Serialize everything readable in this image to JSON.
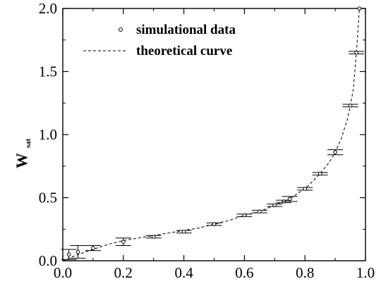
{
  "chart_data": {
    "type": "scatter",
    "ylabel": "W",
    "ylabel_subscript": "sat",
    "xlabel": "",
    "title": "",
    "xlim": [
      0.0,
      1.0
    ],
    "ylim": [
      0.0,
      2.0
    ],
    "xticks": [
      "0.0",
      "0.2",
      "0.4",
      "0.6",
      "0.8",
      "1.0"
    ],
    "yticks": [
      "0.0",
      "0.5",
      "1.0",
      "1.5",
      "2.0"
    ],
    "grid": false,
    "legend_position": "top-left",
    "series": [
      {
        "name": "simulational data",
        "style": "open-circle-markers-with-error-bars",
        "points": [
          {
            "x": 0.02,
            "y": 0.05,
            "yerr": 0.04
          },
          {
            "x": 0.05,
            "y": 0.07,
            "yerr": 0.05
          },
          {
            "x": 0.1,
            "y": 0.1,
            "yerr": 0.02
          },
          {
            "x": 0.2,
            "y": 0.15,
            "yerr": 0.03
          },
          {
            "x": 0.3,
            "y": 0.19,
            "yerr": 0.01
          },
          {
            "x": 0.4,
            "y": 0.23,
            "yerr": 0.01
          },
          {
            "x": 0.5,
            "y": 0.29,
            "yerr": 0.01
          },
          {
            "x": 0.6,
            "y": 0.36,
            "yerr": 0.01
          },
          {
            "x": 0.65,
            "y": 0.39,
            "yerr": 0.01
          },
          {
            "x": 0.7,
            "y": 0.44,
            "yerr": 0.01
          },
          {
            "x": 0.73,
            "y": 0.47,
            "yerr": 0.01
          },
          {
            "x": 0.75,
            "y": 0.49,
            "yerr": 0.02
          },
          {
            "x": 0.8,
            "y": 0.57,
            "yerr": 0.01
          },
          {
            "x": 0.85,
            "y": 0.69,
            "yerr": 0.01
          },
          {
            "x": 0.9,
            "y": 0.86,
            "yerr": 0.02
          },
          {
            "x": 0.95,
            "y": 1.23,
            "yerr": 0.01
          },
          {
            "x": 0.97,
            "y": 1.65,
            "yerr": 0.01
          },
          {
            "x": 0.98,
            "y": 2.0,
            "yerr": 0.0
          }
        ]
      },
      {
        "name": "theoretical curve",
        "style": "dashed-line",
        "x": [
          0.0,
          0.05,
          0.1,
          0.15,
          0.2,
          0.25,
          0.3,
          0.35,
          0.4,
          0.45,
          0.5,
          0.55,
          0.6,
          0.65,
          0.7,
          0.73,
          0.75,
          0.78,
          0.8,
          0.83,
          0.85,
          0.88,
          0.9,
          0.92,
          0.94,
          0.95,
          0.96,
          0.97,
          0.975,
          0.98
        ],
        "y": [
          0.0,
          0.05,
          0.09,
          0.13,
          0.16,
          0.18,
          0.2,
          0.22,
          0.24,
          0.26,
          0.29,
          0.32,
          0.36,
          0.39,
          0.44,
          0.47,
          0.49,
          0.54,
          0.57,
          0.64,
          0.69,
          0.78,
          0.86,
          0.97,
          1.12,
          1.23,
          1.36,
          1.65,
          1.82,
          2.0
        ]
      }
    ]
  }
}
